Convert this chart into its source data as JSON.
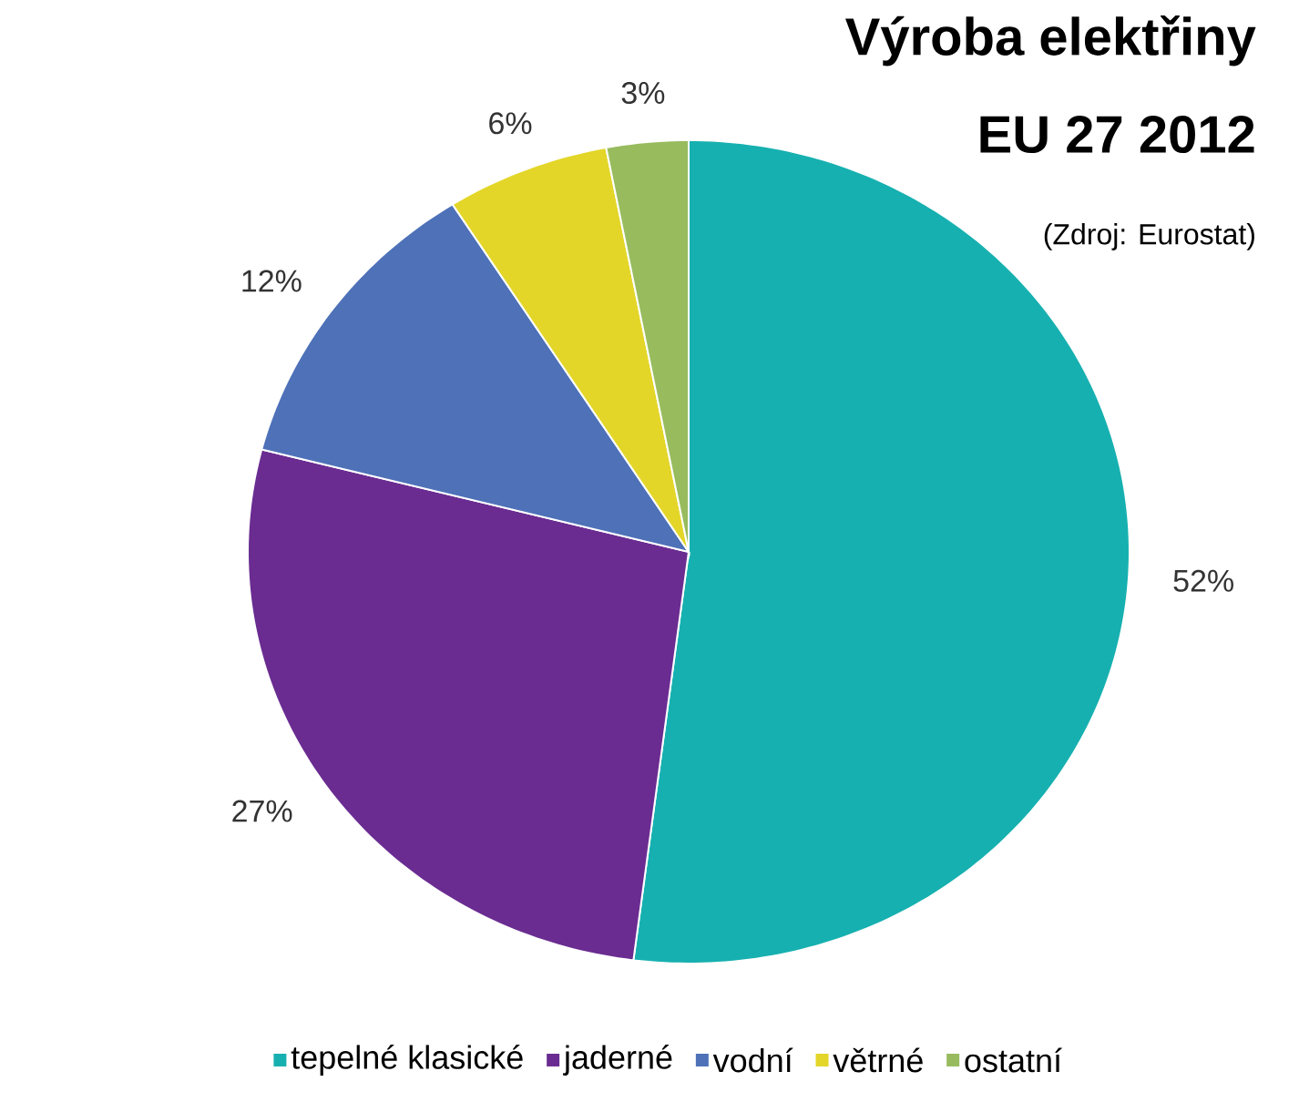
{
  "chart_data": {
    "type": "pie",
    "title": "Výroba elektřiny",
    "subtitle": "EU 27 2012",
    "annotations": [
      "(Zdroj: Eurostat)"
    ],
    "categories": [
      "tepelné klasické",
      "jaderné",
      "vodní",
      "větrné",
      "ostatní"
    ],
    "values": [
      52,
      27,
      12,
      6,
      3
    ],
    "colors": [
      "#17b0b0",
      "#6a2c91",
      "#4e71b8",
      "#e3d629",
      "#98bb5e"
    ],
    "value_labels": [
      "52%",
      "27%",
      "12%",
      "6%",
      "3%"
    ],
    "legend": "bottom"
  }
}
